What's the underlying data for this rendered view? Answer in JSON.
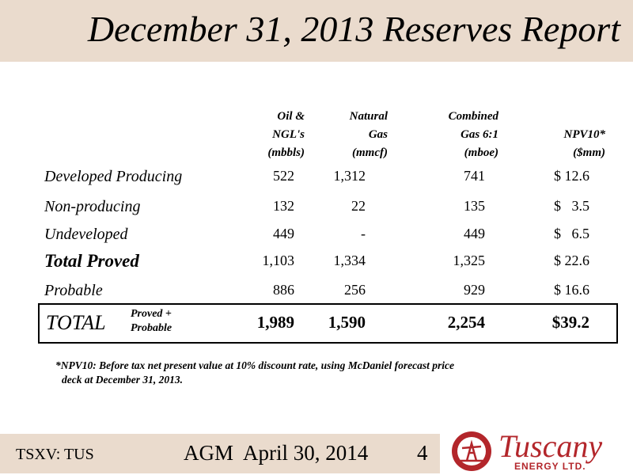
{
  "header": {
    "title": "December 31, 2013 Reserves Report"
  },
  "table": {
    "columns": [
      [
        "Oil &",
        "NGL's",
        "(mbbls)"
      ],
      [
        "Natural",
        "Gas",
        "(mmcf)"
      ],
      [
        "Combined",
        "Gas 6:1",
        "(mboe)"
      ],
      [
        "NPV10*",
        "($mm)"
      ]
    ],
    "rows": [
      [
        "Developed Producing",
        "522",
        "1,312",
        "741",
        "$ 12.6"
      ],
      [
        "Non-producing",
        "132",
        "22",
        "135",
        "$   3.5"
      ],
      [
        "Undeveloped",
        "449",
        "-",
        "449",
        "$   6.5"
      ],
      [
        "Total Proved",
        "1,103",
        "1,334",
        "1,325",
        "$ 22.6"
      ],
      [
        "Probable",
        "886",
        "256",
        "929",
        "$ 16.6"
      ]
    ],
    "total": {
      "label": "TOTAL",
      "note": [
        "Proved +",
        "Probable"
      ],
      "values": [
        "1,989",
        "1,590",
        "2,254",
        "$39.2"
      ]
    }
  },
  "footnote": [
    "*NPV10: Before tax net present value at 10% discount rate, using McDaniel forecast price",
    "deck at December 31, 2013."
  ],
  "footer": {
    "ticker": "TSXV: TUS",
    "event": "AGM  April 30, 2014",
    "page": "4"
  },
  "logo": {
    "name": "Tuscany",
    "subtitle": "ENERGY LTD."
  }
}
